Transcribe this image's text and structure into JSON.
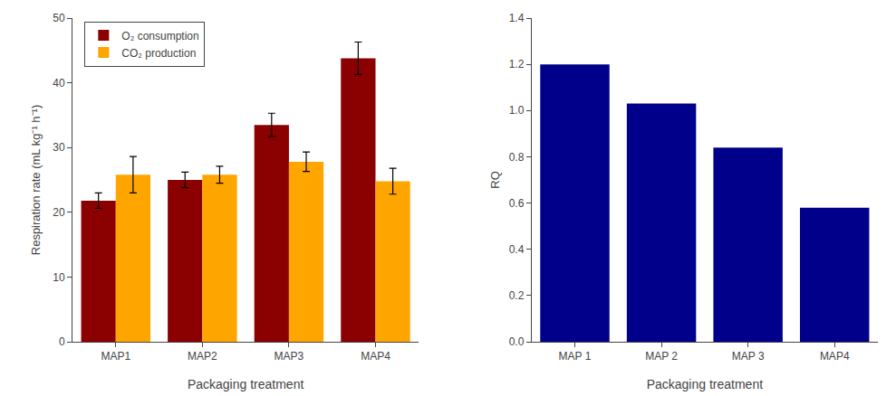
{
  "chart_data": [
    {
      "type": "bar",
      "categories": [
        "MAP1",
        "MAP2",
        "MAP3",
        "MAP4"
      ],
      "series": [
        {
          "name": "O₂ consumption",
          "color": "#8B0000",
          "values": [
            21.8,
            25.0,
            33.5,
            43.8
          ],
          "errors": [
            1.2,
            1.2,
            1.8,
            2.5
          ]
        },
        {
          "name": "CO₂ production",
          "color": "#FFA500",
          "values": [
            25.8,
            25.8,
            27.8,
            24.8
          ],
          "errors": [
            2.8,
            1.3,
            1.5,
            2.0
          ]
        }
      ],
      "xlabel": "Packaging treatment",
      "ylabel": "Respiration rate (mL kg⁻¹ h⁻¹)",
      "ylim": [
        0,
        50
      ],
      "yticks": [
        0,
        10,
        20,
        30,
        40,
        50
      ],
      "legend": "upper left",
      "grid": false
    },
    {
      "type": "bar",
      "categories": [
        "MAP 1",
        "MAP 2",
        "MAP 3",
        "MAP4"
      ],
      "values": [
        1.2,
        1.03,
        0.84,
        0.58
      ],
      "color": "#00008B",
      "xlabel": "Packaging treatment",
      "ylabel": "RQ",
      "ylim": [
        0.0,
        1.4
      ],
      "yticks": [
        {
          "value": 0,
          "label": "0.0"
        },
        0.2,
        0.4,
        0.6,
        0.8,
        {
          "value": 1,
          "label": "1.0"
        },
        1.2,
        1.4
      ],
      "grid": false
    }
  ]
}
